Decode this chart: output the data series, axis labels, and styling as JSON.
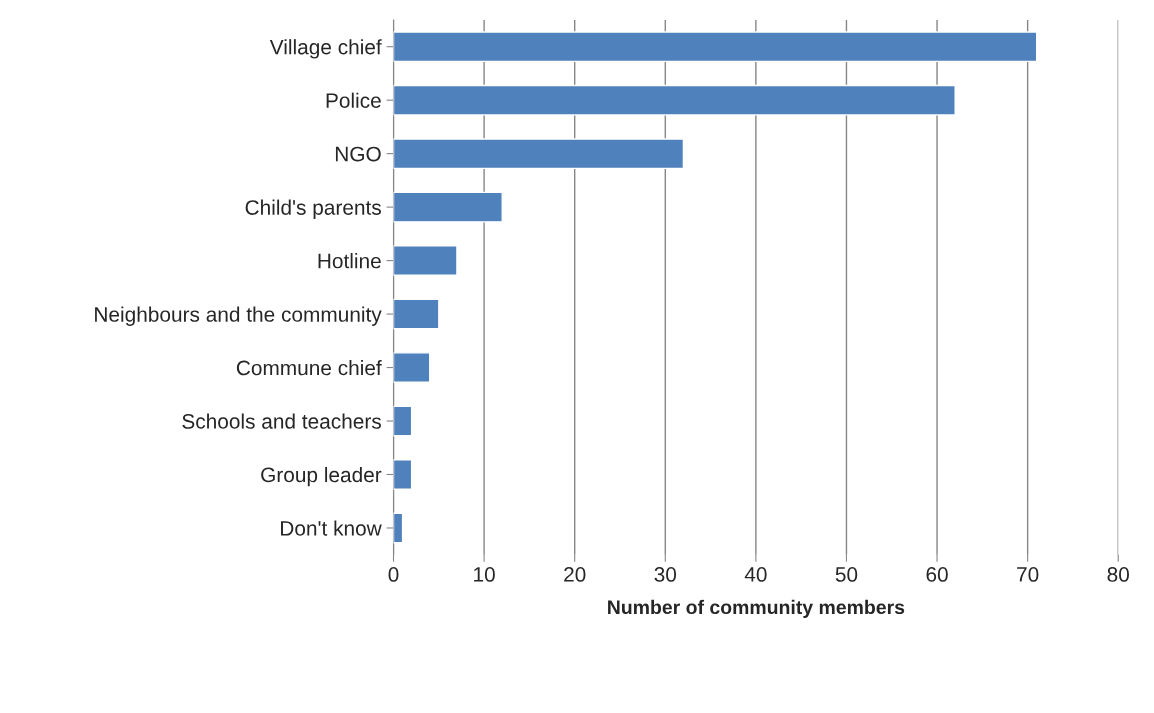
{
  "chart_data": {
    "type": "bar",
    "orientation": "horizontal",
    "categories": [
      "Village chief",
      "Police",
      "NGO",
      "Child's parents",
      "Hotline",
      "Neighbours and the community",
      "Commune chief",
      "Schools and teachers",
      "Group leader",
      "Don't know"
    ],
    "values": [
      71,
      62,
      32,
      12,
      7,
      5,
      4,
      2,
      2,
      1
    ],
    "color": "#4f81bd",
    "xlabel": "Number of community members",
    "xlim": [
      0,
      80
    ],
    "xticks": [
      0,
      10,
      20,
      30,
      40,
      50,
      60,
      70,
      80
    ],
    "grid": "x",
    "legend": false
  }
}
